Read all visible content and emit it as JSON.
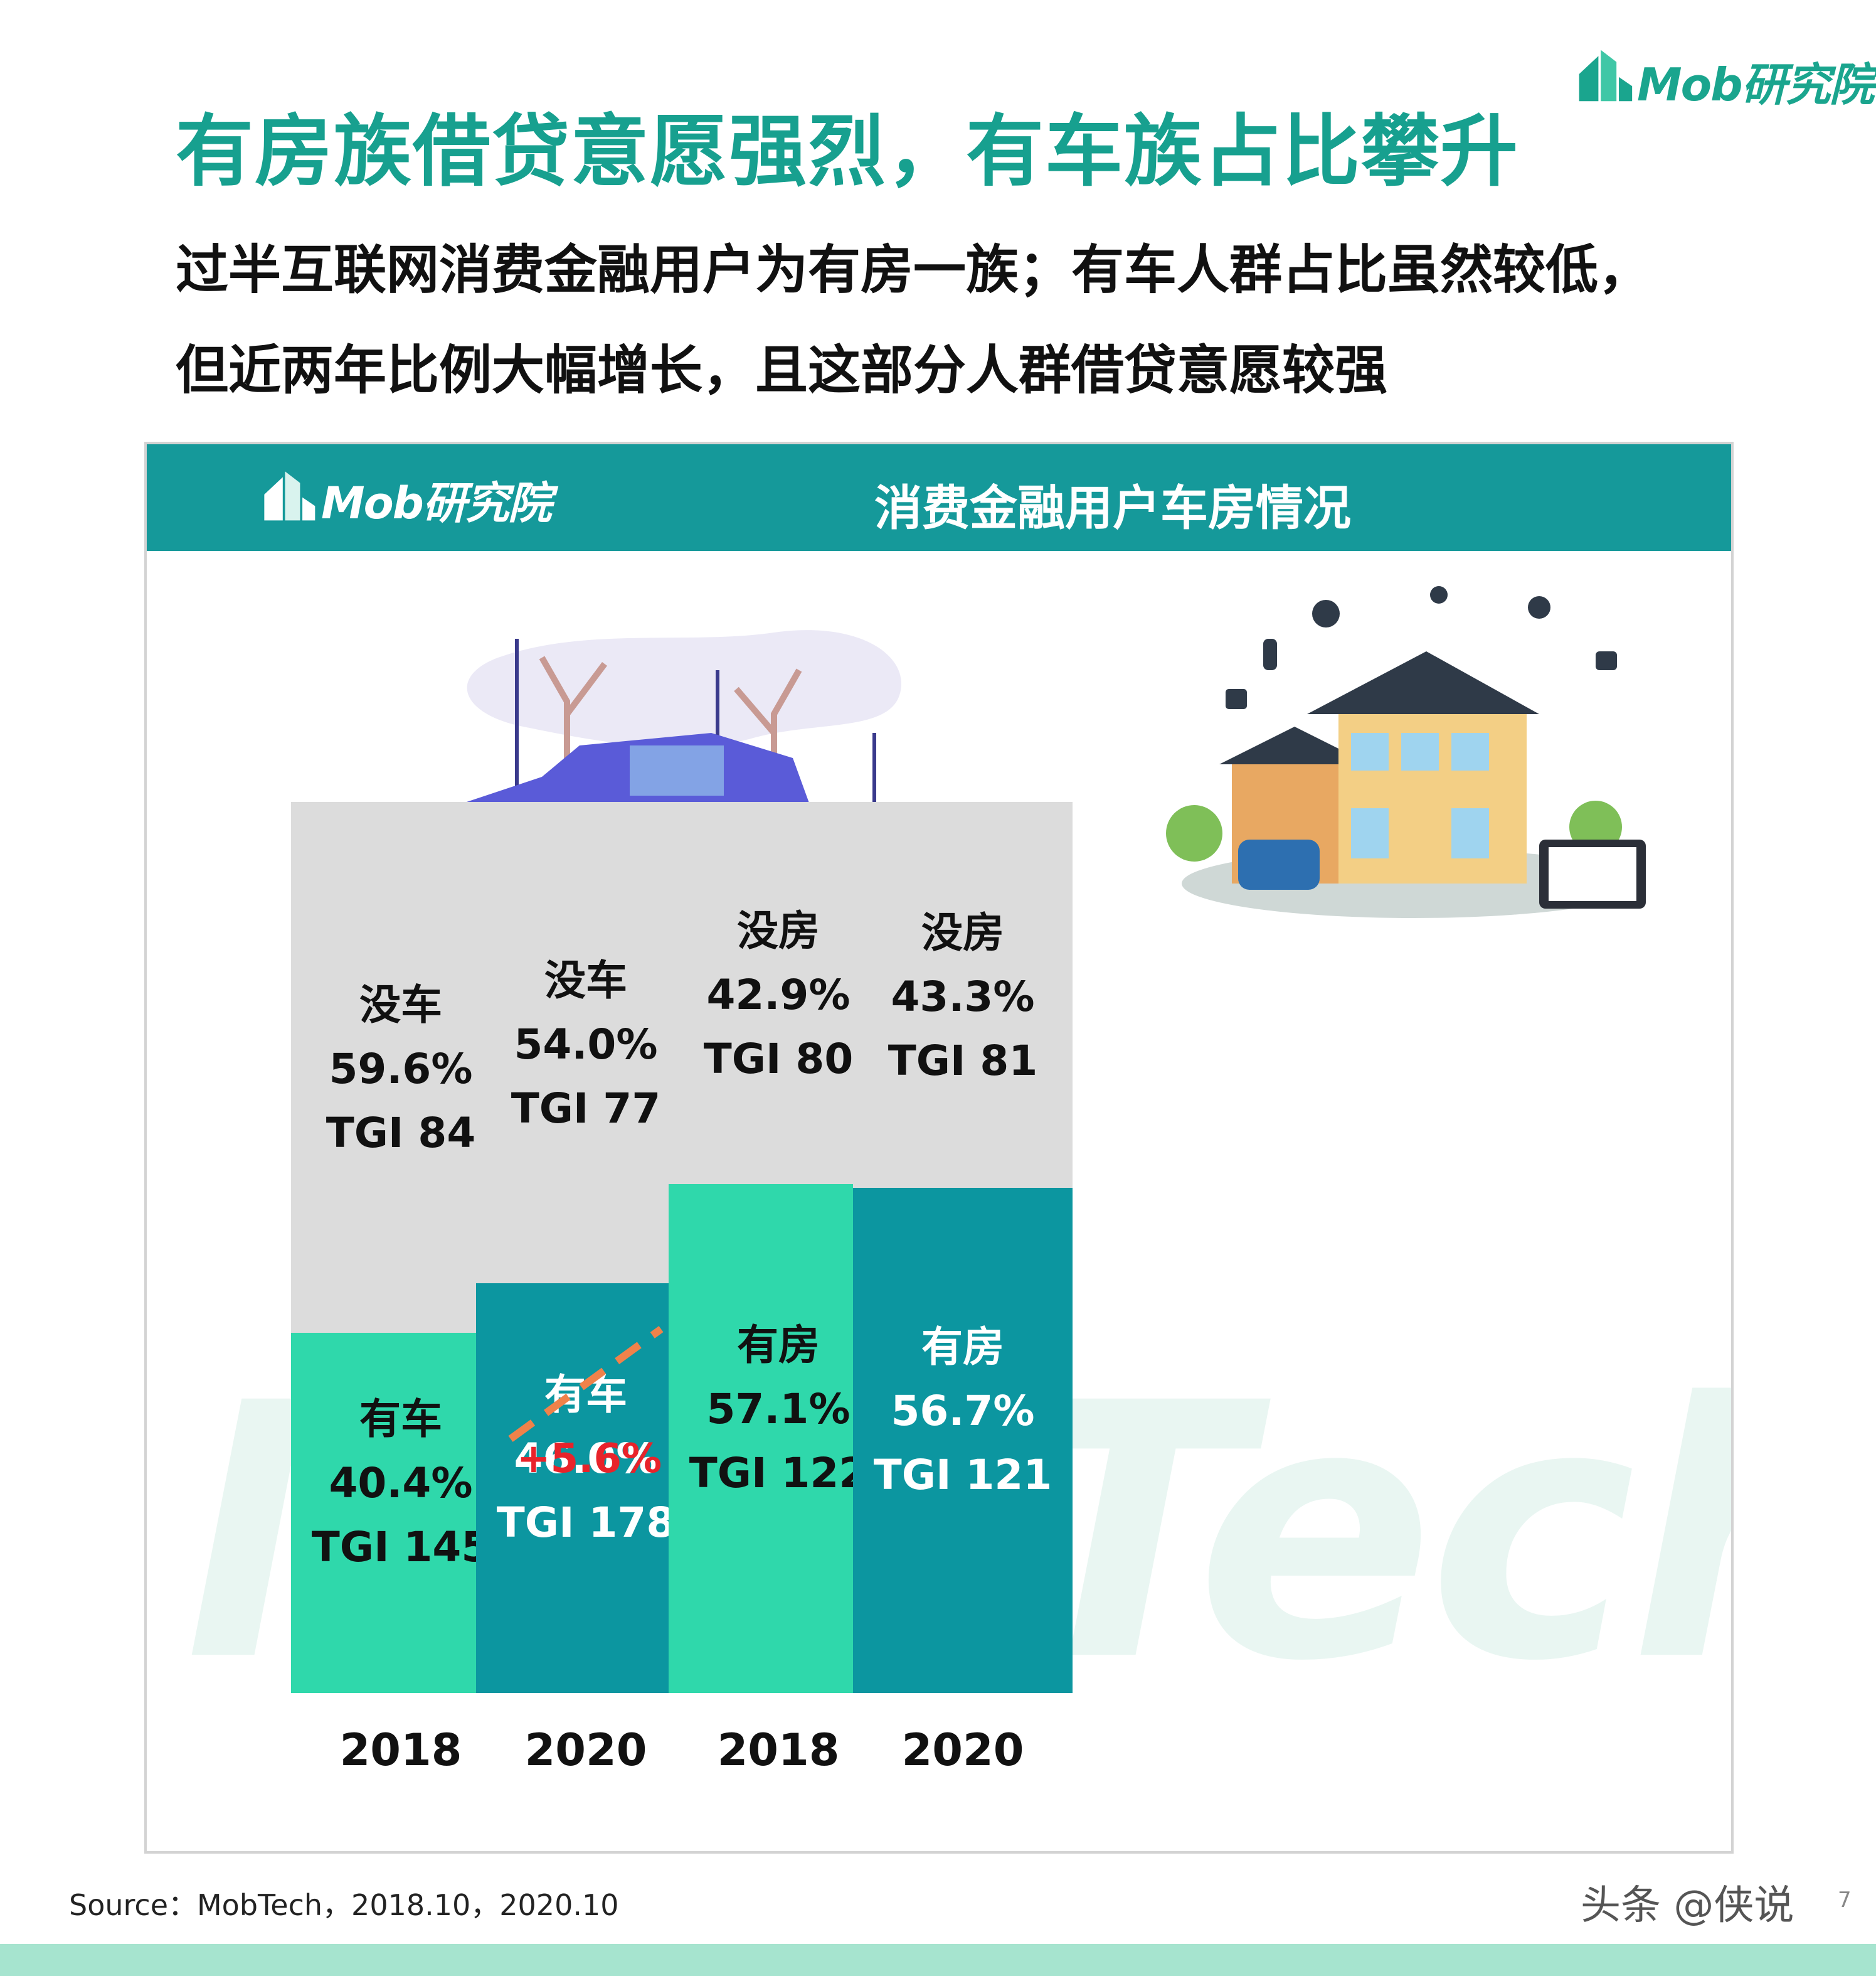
{
  "brand": {
    "name": "Mob研究院"
  },
  "page": {
    "title": "有房族借贷意愿强烈，有车族占比攀升",
    "subtitle": "过半互联网消费金融用户为有房一族；有车人群占比虽然较低，但近两年比例大幅增长，且这部分人群借贷意愿较强"
  },
  "panel": {
    "logo_text": "Mob研究院",
    "title": "消费金融用户车房情况"
  },
  "watermark": "MobTech 博",
  "colors": {
    "header": "#15999a",
    "title": "#17a08f",
    "grey_segment": "#dcdcdc",
    "light_green": "#2fd8ab",
    "dark_teal": "#0c96a0",
    "delta_red": "#e8232a",
    "dashed_line": "#f0824a"
  },
  "chart_data": {
    "type": "bar",
    "stacked": true,
    "ylim": [
      0,
      100
    ],
    "categories": [
      "2018",
      "2020",
      "2018",
      "2020"
    ],
    "groups": [
      {
        "group": "car",
        "years": [
          "2018",
          "2020"
        ],
        "series": [
          {
            "name": "有车",
            "values": [
              40.4,
              46.0
            ],
            "labels": [
              "40.4%",
              "46.0%"
            ],
            "tgi": [
              "TGI 145",
              "TGI 178"
            ],
            "colors": [
              "#2fd8ab",
              "#0c96a0"
            ]
          },
          {
            "name": "没车",
            "values": [
              59.6,
              54.0
            ],
            "labels": [
              "59.6%",
              "54.0%"
            ],
            "tgi": [
              "TGI 84",
              "TGI 77"
            ]
          }
        ],
        "annotation": "+5.6%"
      },
      {
        "group": "house",
        "years": [
          "2018",
          "2020"
        ],
        "series": [
          {
            "name": "有房",
            "values": [
              57.1,
              56.7
            ],
            "labels": [
              "57.1%",
              "56.7%"
            ],
            "tgi": [
              "TGI 122",
              "TGI 121"
            ],
            "colors": [
              "#2fd8ab",
              "#0c96a0"
            ]
          },
          {
            "name": "没房",
            "values": [
              42.9,
              43.3
            ],
            "labels": [
              "42.9%",
              "43.3%"
            ],
            "tgi": [
              "TGI 80",
              "TGI 81"
            ]
          }
        ]
      }
    ]
  },
  "footer": {
    "source": "Source：MobTech，2018.10，2020.10",
    "credit": "头条 @侠说",
    "page_number": "7"
  }
}
